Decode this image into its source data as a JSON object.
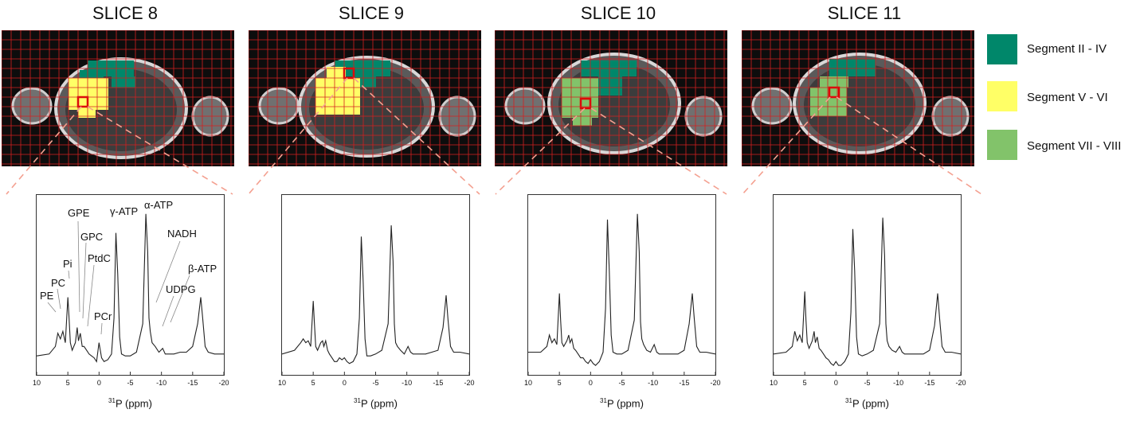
{
  "slices": [
    {
      "title": "SLICE 8"
    },
    {
      "title": "SLICE 9"
    },
    {
      "title": "SLICE 10"
    },
    {
      "title": "SLICE 11"
    }
  ],
  "legend": [
    {
      "label": "Segment II - IV",
      "color": "#00876a"
    },
    {
      "label": "Segment V - VI",
      "color": "#ffff66"
    },
    {
      "label": "Segment VII - VIII",
      "color": "#82c36a"
    }
  ],
  "colors": {
    "grid": "#d42020",
    "voxel_outline": "#e00000",
    "connector": "#f4a090",
    "spectrum": "#222222"
  },
  "chart_data": {
    "type": "line",
    "xlabel_prefix": "31",
    "xlabel": "P (ppm)",
    "xlim": [
      10,
      -20
    ],
    "xticks": [
      10,
      5,
      0,
      -5,
      -10,
      -15,
      -20
    ],
    "peak_labels": [
      "PE",
      "PC",
      "Pi",
      "GPE",
      "GPC",
      "PtdC",
      "PCr",
      "γ-ATP",
      "α-ATP",
      "NADH",
      "β-ATP",
      "UDPG"
    ],
    "series": [
      {
        "name": "SLICE 8",
        "x": [
          10,
          8,
          7,
          6.6,
          6.2,
          5.8,
          5.4,
          5,
          4.8,
          4.6,
          4.3,
          3.8,
          3.5,
          3.3,
          3,
          2.7,
          2.4,
          2,
          1.6,
          1.2,
          0.8,
          0.4,
          0,
          -0.4,
          -0.8,
          -1.4,
          -2,
          -2.4,
          -2.7,
          -3,
          -3.3,
          -3.6,
          -4.2,
          -5,
          -6,
          -7,
          -7.5,
          -7.8,
          -8,
          -8.2,
          -8.5,
          -9,
          -9.6,
          -10.2,
          -10.6,
          -11,
          -12,
          -13,
          -14,
          -15,
          -15.8,
          -16.3,
          -16.6,
          -17,
          -17.5,
          -18.5,
          -20
        ],
        "y": [
          0.05,
          0.06,
          0.1,
          0.17,
          0.14,
          0.18,
          0.12,
          0.36,
          0.25,
          0.12,
          0.08,
          0.12,
          0.2,
          0.13,
          0.17,
          0.1,
          0.1,
          0.08,
          0.06,
          0.05,
          0.04,
          0.02,
          0.12,
          0.04,
          0.02,
          0.03,
          0.06,
          0.25,
          0.7,
          0.48,
          0.15,
          0.06,
          0.05,
          0.05,
          0.07,
          0.22,
          0.8,
          0.6,
          0.25,
          0.18,
          0.12,
          0.1,
          0.07,
          0.09,
          0.06,
          0.06,
          0.06,
          0.07,
          0.07,
          0.1,
          0.22,
          0.36,
          0.25,
          0.1,
          0.07,
          0.06,
          0.06
        ]
      },
      {
        "name": "SLICE 9",
        "x": [
          10,
          8,
          7,
          6.6,
          6.2,
          5.8,
          5.4,
          5,
          4.8,
          4.6,
          4.3,
          3.8,
          3.5,
          3.3,
          3,
          2.7,
          2.4,
          2,
          1.6,
          1.2,
          0.8,
          0.4,
          0,
          -0.4,
          -0.8,
          -1.4,
          -2,
          -2.4,
          -2.7,
          -3,
          -3.3,
          -3.6,
          -4.2,
          -5,
          -6,
          -7,
          -7.5,
          -7.8,
          -8,
          -8.2,
          -8.5,
          -9,
          -9.6,
          -10.2,
          -10.6,
          -11,
          -12,
          -13,
          -14,
          -15,
          -15.8,
          -16.3,
          -16.6,
          -17,
          -17.5,
          -18.5,
          -20
        ],
        "y": [
          0.06,
          0.08,
          0.12,
          0.14,
          0.12,
          0.13,
          0.1,
          0.34,
          0.22,
          0.1,
          0.08,
          0.12,
          0.13,
          0.1,
          0.13,
          0.08,
          0.06,
          0.04,
          0.02,
          0.02,
          0.04,
          0.03,
          0.04,
          0.02,
          0.01,
          0.02,
          0.06,
          0.25,
          0.68,
          0.45,
          0.14,
          0.05,
          0.05,
          0.06,
          0.08,
          0.22,
          0.74,
          0.55,
          0.22,
          0.12,
          0.1,
          0.08,
          0.06,
          0.1,
          0.07,
          0.06,
          0.06,
          0.06,
          0.07,
          0.08,
          0.2,
          0.37,
          0.24,
          0.1,
          0.07,
          0.07,
          0.06
        ]
      },
      {
        "name": "SLICE 10",
        "x": [
          10,
          8,
          7,
          6.6,
          6.2,
          5.8,
          5.4,
          5,
          4.8,
          4.6,
          4.3,
          3.8,
          3.5,
          3.3,
          3,
          2.7,
          2.4,
          2,
          1.6,
          1.2,
          0.8,
          0.4,
          0,
          -0.4,
          -0.8,
          -1.4,
          -2,
          -2.4,
          -2.7,
          -3,
          -3.3,
          -3.6,
          -4.2,
          -5,
          -6,
          -7,
          -7.5,
          -7.8,
          -8,
          -8.2,
          -8.5,
          -9,
          -9.6,
          -10.2,
          -10.6,
          -11,
          -12,
          -13,
          -14,
          -15,
          -15.8,
          -16.3,
          -16.6,
          -17,
          -17.5,
          -18.5,
          -20
        ],
        "y": [
          0.07,
          0.07,
          0.1,
          0.16,
          0.12,
          0.14,
          0.11,
          0.38,
          0.24,
          0.12,
          0.1,
          0.13,
          0.16,
          0.12,
          0.14,
          0.09,
          0.08,
          0.06,
          0.04,
          0.04,
          0.02,
          0.01,
          0.03,
          0.01,
          0.0,
          0.02,
          0.07,
          0.3,
          0.77,
          0.5,
          0.16,
          0.07,
          0.06,
          0.06,
          0.08,
          0.24,
          0.8,
          0.6,
          0.23,
          0.14,
          0.11,
          0.08,
          0.07,
          0.11,
          0.07,
          0.06,
          0.06,
          0.06,
          0.06,
          0.08,
          0.22,
          0.38,
          0.25,
          0.1,
          0.07,
          0.07,
          0.06
        ]
      },
      {
        "name": "SLICE 11",
        "x": [
          10,
          8,
          7,
          6.6,
          6.2,
          5.8,
          5.4,
          5,
          4.8,
          4.6,
          4.3,
          3.8,
          3.5,
          3.3,
          3,
          2.7,
          2.4,
          2,
          1.6,
          1.2,
          0.8,
          0.4,
          0,
          -0.4,
          -0.8,
          -1.4,
          -2,
          -2.4,
          -2.7,
          -3,
          -3.3,
          -3.6,
          -4.2,
          -5,
          -6,
          -7,
          -7.5,
          -7.8,
          -8,
          -8.2,
          -8.5,
          -9,
          -9.6,
          -10.2,
          -10.6,
          -11,
          -12,
          -13,
          -14,
          -15,
          -15.8,
          -16.3,
          -16.6,
          -17,
          -17.5,
          -18.5,
          -20
        ],
        "y": [
          0.06,
          0.07,
          0.1,
          0.18,
          0.13,
          0.16,
          0.12,
          0.39,
          0.24,
          0.12,
          0.09,
          0.13,
          0.18,
          0.12,
          0.15,
          0.09,
          0.08,
          0.06,
          0.04,
          0.03,
          0.01,
          0.0,
          0.02,
          0.0,
          0.0,
          0.02,
          0.06,
          0.28,
          0.72,
          0.5,
          0.15,
          0.06,
          0.05,
          0.06,
          0.08,
          0.22,
          0.78,
          0.58,
          0.22,
          0.13,
          0.1,
          0.08,
          0.07,
          0.1,
          0.07,
          0.06,
          0.06,
          0.06,
          0.06,
          0.08,
          0.21,
          0.38,
          0.25,
          0.1,
          0.07,
          0.07,
          0.06
        ]
      }
    ],
    "ylim": [
      -0.05,
      0.9
    ]
  }
}
